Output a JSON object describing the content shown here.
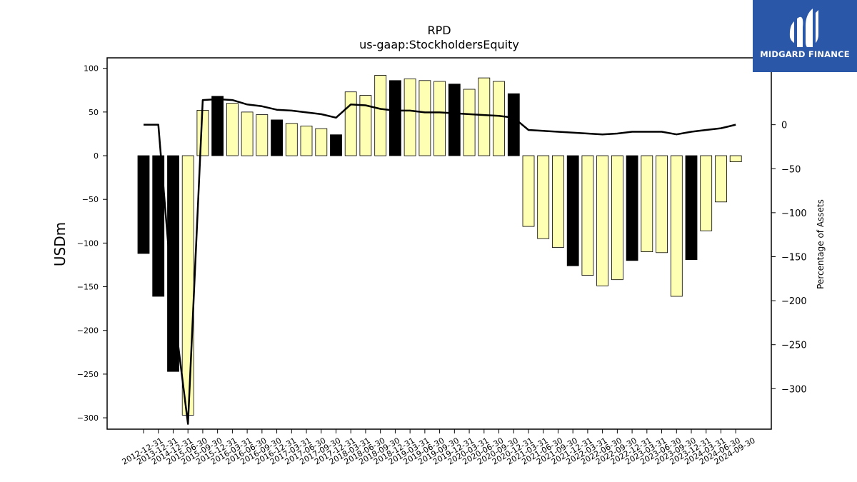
{
  "chart_data": {
    "type": "bar",
    "title": "RPD",
    "subtitle": "us-gaap:StockholdersEquity",
    "ylabel": "USDm",
    "y2label": "Percentage of Assets",
    "ylim": [
      -313,
      112
    ],
    "y2lim": [
      -346,
      76
    ],
    "yticks": [
      "100",
      "50",
      "0",
      "−50",
      "−100",
      "−150",
      "−200",
      "−250",
      "−300"
    ],
    "y2ticks": [
      "0",
      "−50",
      "−100",
      "−150",
      "−200",
      "−250",
      "−300"
    ],
    "categories": [
      "2012-12-31",
      "2013-12-31",
      "2014-12-31",
      "2015-06-30",
      "2015-09-30",
      "2015-12-31",
      "2016-03-31",
      "2016-06-30",
      "2016-09-30",
      "2016-12-31",
      "2017-03-31",
      "2017-06-30",
      "2017-09-30",
      "2017-12-31",
      "2018-03-31",
      "2018-06-30",
      "2018-09-30",
      "2018-12-31",
      "2019-03-31",
      "2019-06-30",
      "2019-09-30",
      "2019-12-31",
      "2020-03-31",
      "2020-06-30",
      "2020-09-30",
      "2020-12-31",
      "2021-03-31",
      "2021-06-30",
      "2021-09-30",
      "2021-12-31",
      "2022-03-31",
      "2022-06-30",
      "2022-09-30",
      "2022-12-31",
      "2023-03-31",
      "2023-06-30",
      "2023-09-30",
      "2023-12-31",
      "2024-03-31",
      "2024-06-30",
      "2024-09-30"
    ],
    "series": [
      {
        "values": [
          -112,
          -161,
          -247,
          -297,
          52,
          68,
          60,
          50,
          47,
          41,
          37,
          34,
          31,
          24,
          73,
          69,
          92,
          86,
          88,
          86,
          85,
          82,
          76,
          89,
          85,
          71,
          -81,
          -95,
          -105,
          -126,
          -137,
          -149,
          -142,
          -120,
          -110,
          -111,
          -161,
          -119,
          -86,
          -53,
          -7
        ]
      },
      {
        "values": [
          0,
          0,
          -205,
          -340,
          28,
          29,
          28,
          23,
          21,
          17,
          16,
          14,
          12,
          8,
          23,
          22,
          18,
          16,
          16,
          14,
          14,
          13,
          12,
          11,
          10,
          8,
          -6,
          -7,
          -8,
          -9,
          -10,
          -11,
          -10,
          -8,
          -8,
          -8,
          -11,
          -8,
          -6,
          -4,
          0
        ]
      }
    ],
    "bar_colors": [
      "#000000",
      "#000000",
      "#000000",
      "#ffffb3",
      "#ffffb3",
      "#000000",
      "#ffffb3",
      "#ffffb3",
      "#ffffb3",
      "#000000",
      "#ffffb3",
      "#ffffb3",
      "#ffffb3",
      "#000000",
      "#ffffb3",
      "#ffffb3",
      "#ffffb3",
      "#000000",
      "#ffffb3",
      "#ffffb3",
      "#ffffb3",
      "#000000",
      "#ffffb3",
      "#ffffb3",
      "#ffffb3",
      "#000000",
      "#ffffb3",
      "#ffffb3",
      "#ffffb3",
      "#000000",
      "#ffffb3",
      "#ffffb3",
      "#ffffb3",
      "#000000",
      "#ffffb3",
      "#ffffb3",
      "#ffffb3",
      "#000000",
      "#ffffb3",
      "#ffffb3",
      "#ffffb3"
    ],
    "colors": {
      "highlight_bar": "#000000",
      "bar": "#ffffb3",
      "line": "#000000"
    }
  },
  "logo": {
    "text": "MIDGARD FINANCE",
    "color": "#2b57a8"
  }
}
